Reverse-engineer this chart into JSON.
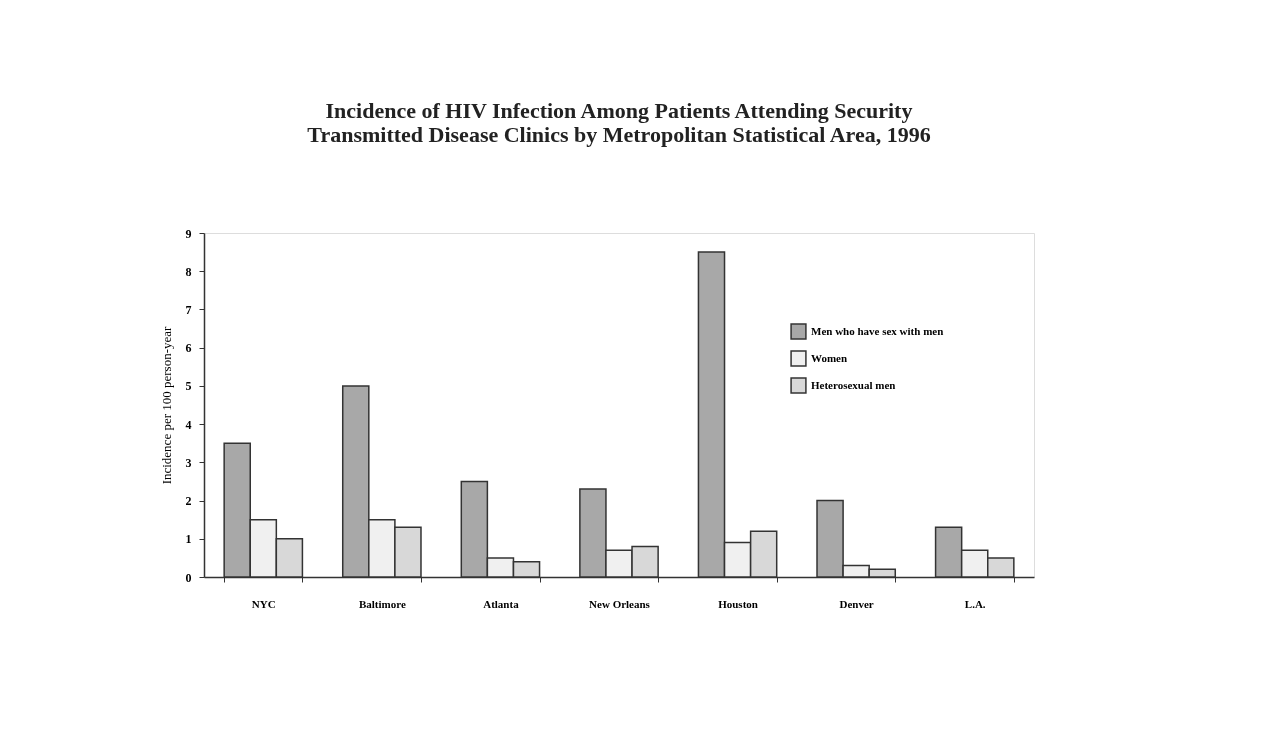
{
  "chart_data": {
    "type": "bar",
    "title": [
      "Incidence of HIV Infection Among Patients Attending Security",
      "Transmitted Disease Clinics by Metropolitan Statistical Area, 1996"
    ],
    "ylabel": "Incidence per 100 person-year",
    "categories": [
      "NYC",
      "Baltimore",
      "Atlanta",
      "New Orleans",
      "Houston",
      "Denver",
      "L.A."
    ],
    "series": [
      {
        "name": "Men who have sex with men",
        "color": "#a8a8a8",
        "values": [
          3.5,
          5.0,
          2.5,
          2.3,
          8.5,
          2.0,
          1.3
        ]
      },
      {
        "name": "Women",
        "color": "#f0f0f0",
        "values": [
          1.5,
          1.5,
          0.5,
          0.7,
          0.9,
          0.3,
          0.7
        ]
      },
      {
        "name": "Heterosexual men",
        "color": "#d8d8d8",
        "values": [
          1.0,
          1.3,
          0.4,
          0.8,
          1.2,
          0.2,
          0.5
        ]
      }
    ],
    "ylim": [
      0,
      9
    ],
    "yticks": [
      0,
      1,
      2,
      3,
      4,
      5,
      6,
      7,
      8,
      9
    ],
    "grid": false,
    "legend": "top right"
  }
}
